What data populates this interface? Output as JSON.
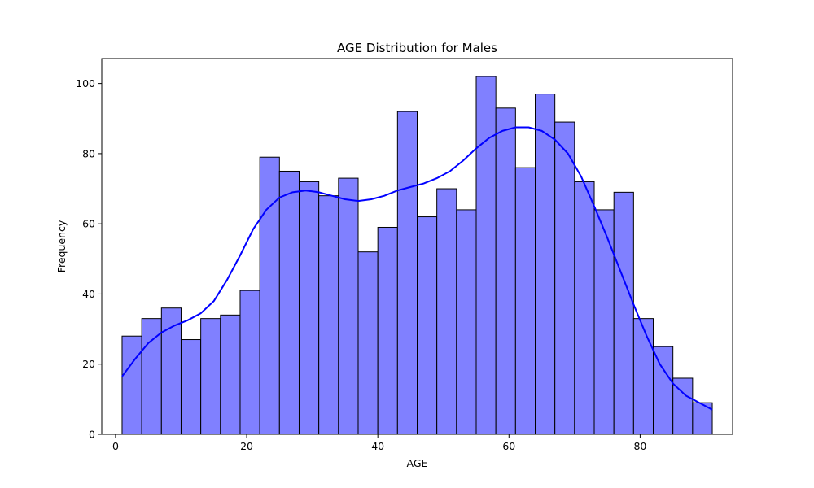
{
  "chart_data": {
    "type": "bar",
    "title": "AGE Distribution for Males",
    "xlabel": "AGE",
    "ylabel": "Frequency",
    "xlim": [
      -2.1,
      94.1
    ],
    "ylim": [
      0,
      107.1
    ],
    "x_ticks": [
      0,
      20,
      40,
      60,
      80
    ],
    "y_ticks": [
      0,
      20,
      40,
      60,
      80,
      100
    ],
    "grid": false,
    "bin_start": 1,
    "bin_width": 3,
    "values": [
      28,
      33,
      36,
      27,
      33,
      34,
      41,
      79,
      75,
      72,
      68,
      73,
      52,
      59,
      92,
      62,
      70,
      64,
      102,
      93,
      76,
      97,
      89,
      72,
      64,
      69,
      33,
      25,
      16,
      9
    ],
    "kde": {
      "x": [
        1,
        3,
        5,
        7,
        9,
        11,
        13,
        15,
        17,
        19,
        21,
        23,
        25,
        27,
        29,
        31,
        33,
        35,
        37,
        39,
        41,
        43,
        45,
        47,
        49,
        51,
        53,
        55,
        57,
        59,
        61,
        63,
        65,
        67,
        69,
        71,
        73,
        75,
        77,
        79,
        81,
        83,
        85,
        87,
        89,
        91
      ],
      "y": [
        16.5,
        21.5,
        26,
        29,
        31,
        32.5,
        34.5,
        38,
        44,
        51,
        58.5,
        64,
        67.5,
        69,
        69.5,
        69,
        68,
        67,
        66.5,
        67,
        68,
        69.5,
        70.5,
        71.5,
        73,
        75,
        78,
        81.5,
        84.5,
        86.5,
        87.5,
        87.5,
        86.5,
        84,
        80,
        73.5,
        65,
        56,
        46.5,
        37,
        28,
        20,
        14.5,
        11,
        9,
        7
      ]
    },
    "colors": {
      "bar_fill": "#8080ff",
      "bar_edge": "#000000",
      "kde_line": "#0000ff"
    }
  }
}
